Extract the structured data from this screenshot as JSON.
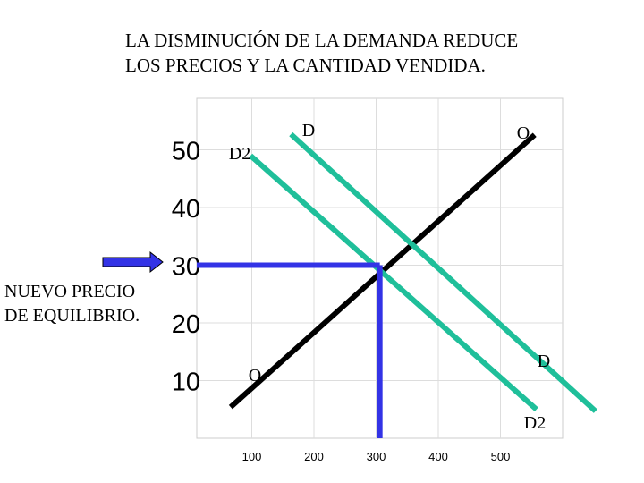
{
  "chart_data": {
    "type": "line",
    "title": [
      "LA DISMINUCIÓN DE LA DEMANDA REDUCE",
      "LOS PRECIOS Y LA CANTIDAD VENDIDA."
    ],
    "annotation": [
      "NUEVO PRECIO",
      "DE EQUILIBRIO."
    ],
    "xlim": [
      0,
      600
    ],
    "ylim": [
      0,
      60
    ],
    "xticks": [
      100,
      200,
      300,
      400,
      500
    ],
    "yticks": [
      10,
      20,
      30,
      40,
      50
    ],
    "grid": true,
    "series": [
      {
        "name": "O",
        "color": "#000000",
        "x": [
          66,
          555
        ],
        "values": [
          5.4,
          52.6
        ]
      },
      {
        "name": "D",
        "color": "#1fbf9a",
        "x": [
          163,
          653
        ],
        "values": [
          52.7,
          4.7
        ]
      },
      {
        "name": "D2",
        "color": "#1fbf9a",
        "x": [
          98,
          558
        ],
        "values": [
          49,
          5
        ]
      },
      {
        "color": "#3333e6",
        "x": [
          11.5,
          306
        ],
        "values": [
          30,
          30
        ]
      },
      {
        "color": "#3333e6",
        "x": [
          306,
          306
        ],
        "values": [
          30,
          0
        ]
      }
    ]
  }
}
